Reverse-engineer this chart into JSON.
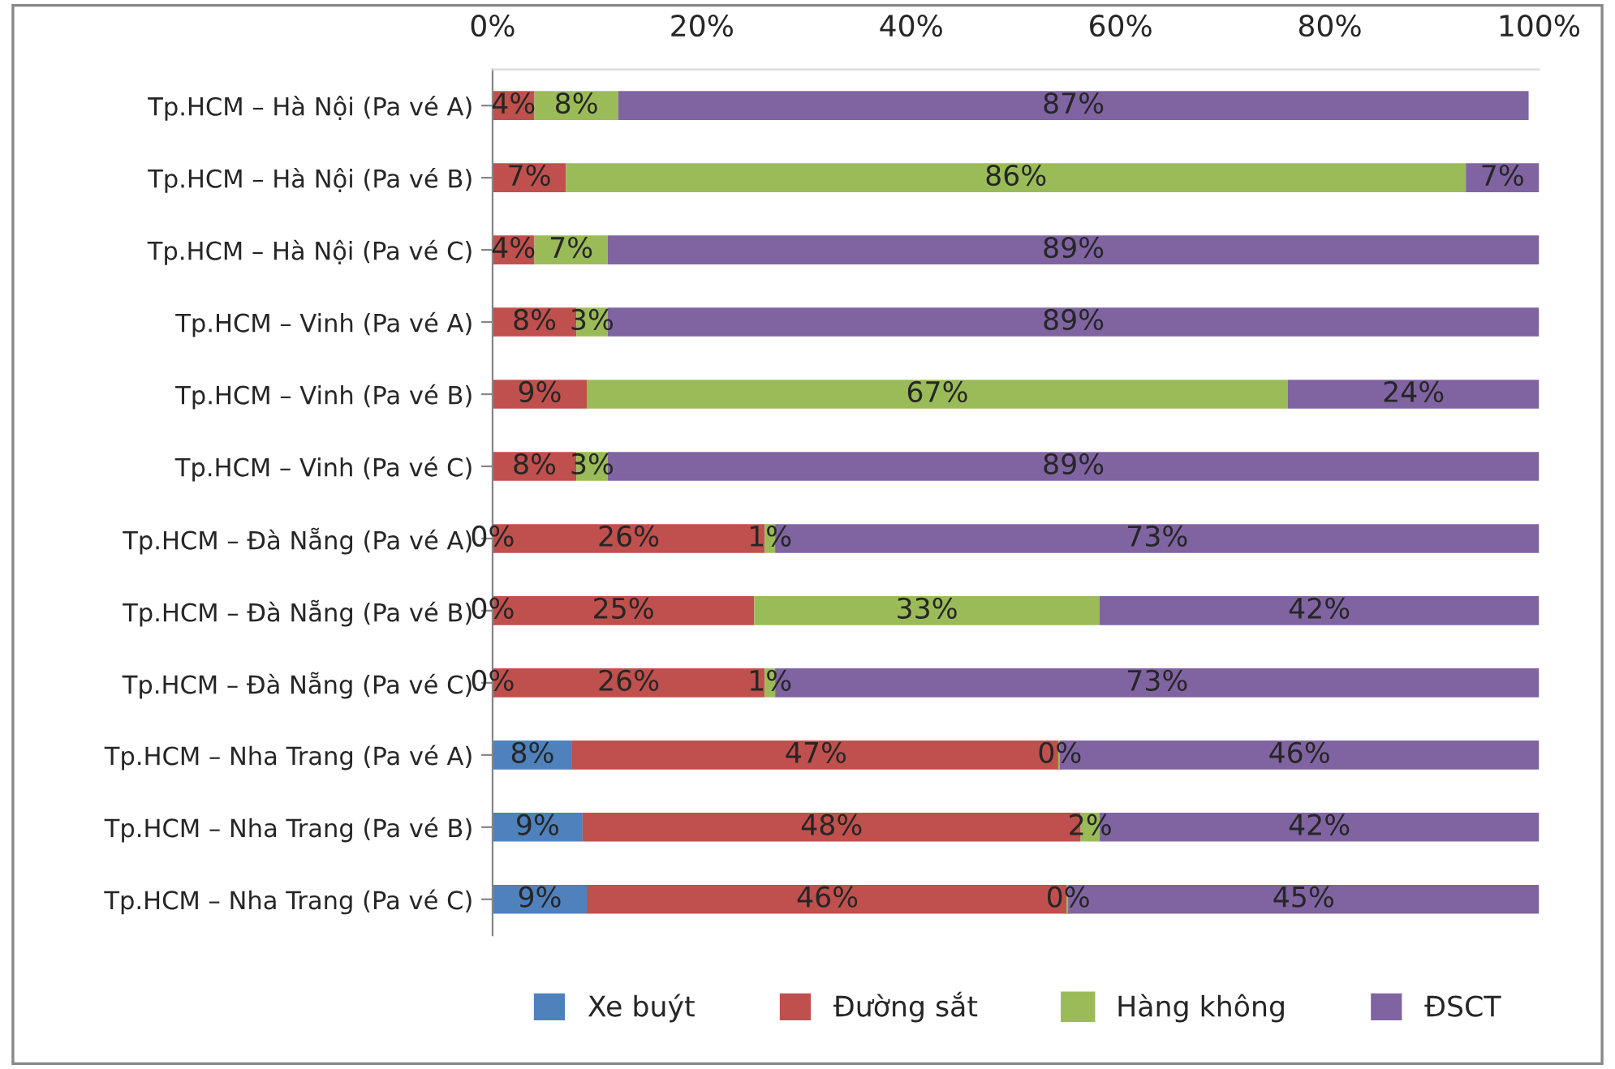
{
  "chart_data": {
    "type": "bar",
    "orientation": "horizontal",
    "stacked": true,
    "categories": [
      "Tp.HCM – Hà Nội (Pa vé A)",
      "Tp.HCM – Hà Nội (Pa vé B)",
      "Tp.HCM – Hà Nội (Pa vé C)",
      "Tp.HCM – Vinh (Pa vé A)",
      "Tp.HCM – Vinh (Pa vé B)",
      "Tp.HCM – Vinh (Pa vé C)",
      "Tp.HCM – Đà Nẵng (Pa vé A)",
      "Tp.HCM – Đà Nẵng (Pa vé B)",
      "Tp.HCM – Đà Nẵng (Pa vé C)",
      "Tp.HCM – Nha Trang (Pa vé A)",
      "Tp.HCM – Nha Trang (Pa vé B)",
      "Tp.HCM – Nha Trang (Pa vé C)"
    ],
    "series": [
      {
        "name": "Xe buýt",
        "color": "#4f81bd",
        "values": [
          null,
          null,
          null,
          null,
          null,
          null,
          0,
          0,
          0,
          7.6,
          8.6,
          9
        ],
        "value_labels": [
          null,
          null,
          null,
          null,
          null,
          null,
          "0%",
          "0%",
          "0%",
          "8%",
          "9%",
          "9%"
        ]
      },
      {
        "name": "Đường sắt",
        "color": "#c0504d",
        "values": [
          4,
          7,
          4,
          8,
          9,
          8,
          26,
          25,
          26,
          46.6,
          47.6,
          46
        ],
        "value_labels": [
          "4%",
          "7%",
          "4%",
          "8%",
          "9%",
          "8%",
          "26%",
          "25%",
          "26%",
          "47%",
          "48%",
          "46%"
        ]
      },
      {
        "name": "Hàng không",
        "color": "#9bbb59",
        "values": [
          8,
          86,
          7,
          3,
          67,
          3,
          1,
          33,
          1,
          0,
          1.8,
          0
        ],
        "value_labels": [
          "8%",
          "86%",
          "7%",
          "3%",
          "67%",
          "3%",
          "1%",
          "33%",
          "1%",
          "0%",
          "2%",
          "0%"
        ]
      },
      {
        "name": "ĐSCT",
        "color": "#8064a2",
        "values": [
          87,
          7,
          89,
          89,
          24,
          89,
          73,
          42,
          73,
          45.8,
          42,
          45
        ],
        "value_labels": [
          "87%",
          "7%",
          "89%",
          "89%",
          "24%",
          "89%",
          "73%",
          "42%",
          "73%",
          "46%",
          "42%",
          "45%"
        ]
      }
    ],
    "xlim": [
      0,
      100
    ],
    "xticks": [
      {
        "value": 0,
        "label": "0%"
      },
      {
        "value": 20,
        "label": "20%"
      },
      {
        "value": 40,
        "label": "40%"
      },
      {
        "value": 60,
        "label": "60%"
      },
      {
        "value": 80,
        "label": "80%"
      },
      {
        "value": 100,
        "label": "100%"
      }
    ],
    "legend": "bottom",
    "grid": false
  }
}
